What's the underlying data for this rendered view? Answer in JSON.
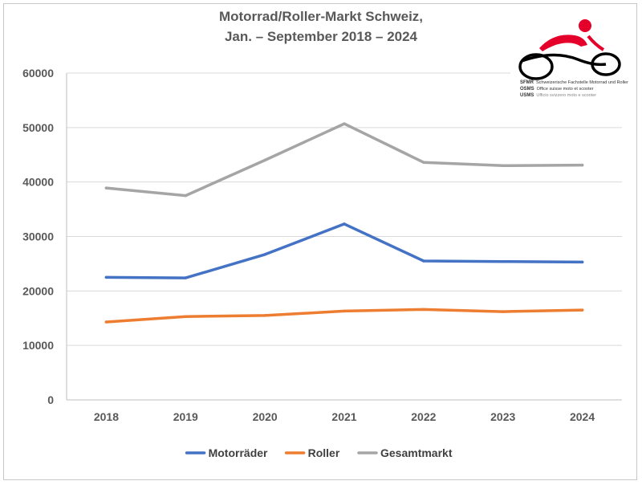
{
  "chart_data": {
    "type": "line",
    "title_line1": "Motorrad/Roller-Markt Schweiz,",
    "title_line2": "Jan. – September 2018 – 2024",
    "categories": [
      "2018",
      "2019",
      "2020",
      "2021",
      "2022",
      "2023",
      "2024"
    ],
    "series": [
      {
        "name": "Motorräder",
        "color": "#4472c4",
        "values": [
          22500,
          22400,
          26700,
          32300,
          25500,
          25400,
          25300
        ]
      },
      {
        "name": "Roller",
        "color": "#ed7d31",
        "values": [
          14300,
          15300,
          15500,
          16300,
          16600,
          16200,
          16500
        ]
      },
      {
        "name": "Gesamtmarkt",
        "color": "#a5a5a5",
        "values": [
          38900,
          37500,
          44000,
          50700,
          43600,
          43000,
          43100
        ]
      }
    ],
    "ylim": [
      0,
      60000
    ],
    "yticks": [
      "60000",
      "50000",
      "40000",
      "30000",
      "20000",
      "10000",
      "0"
    ],
    "grid": true,
    "legend_position": "bottom"
  },
  "logo": {
    "line1_abbr": "SFMR",
    "line1_text": "Schweizerische Fachstelle Motorrad und Roller",
    "line2_abbr": "OSMS",
    "line2_text": "Office suisse moto et scooter",
    "line3_abbr": "USMS",
    "line3_text": "Ufficio svizzero moto e scooter"
  }
}
